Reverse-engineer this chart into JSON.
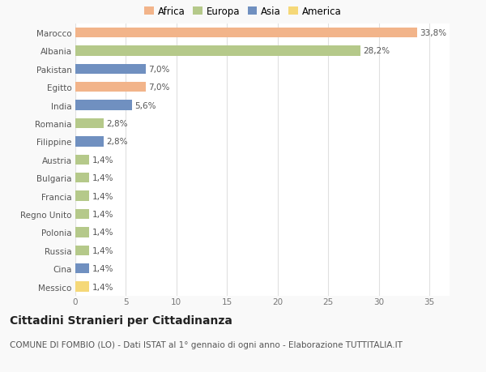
{
  "countries": [
    "Marocco",
    "Albania",
    "Pakistan",
    "Egitto",
    "India",
    "Romania",
    "Filippine",
    "Austria",
    "Bulgaria",
    "Francia",
    "Regno Unito",
    "Polonia",
    "Russia",
    "Cina",
    "Messico"
  ],
  "values": [
    33.8,
    28.2,
    7.0,
    7.0,
    5.6,
    2.8,
    2.8,
    1.4,
    1.4,
    1.4,
    1.4,
    1.4,
    1.4,
    1.4,
    1.4
  ],
  "labels": [
    "33,8%",
    "28,2%",
    "7,0%",
    "7,0%",
    "5,6%",
    "2,8%",
    "2,8%",
    "1,4%",
    "1,4%",
    "1,4%",
    "1,4%",
    "1,4%",
    "1,4%",
    "1,4%",
    "1,4%"
  ],
  "continents": [
    "Africa",
    "Europa",
    "Asia",
    "Africa",
    "Asia",
    "Europa",
    "Asia",
    "Europa",
    "Europa",
    "Europa",
    "Europa",
    "Europa",
    "Europa",
    "Asia",
    "America"
  ],
  "continent_colors": {
    "Africa": "#F2B48A",
    "Europa": "#B5C98A",
    "Asia": "#7090C0",
    "America": "#F5D878"
  },
  "legend_order": [
    "Africa",
    "Europa",
    "Asia",
    "America"
  ],
  "title": "Cittadini Stranieri per Cittadinanza",
  "subtitle": "COMUNE DI FOMBIO (LO) - Dati ISTAT al 1° gennaio di ogni anno - Elaborazione TUTTITALIA.IT",
  "xlim": [
    0,
    37
  ],
  "xticks": [
    0,
    5,
    10,
    15,
    20,
    25,
    30,
    35
  ],
  "background_color": "#f9f9f9",
  "plot_background": "#ffffff",
  "grid_color": "#e0e0e0",
  "bar_height": 0.55,
  "label_fontsize": 7.5,
  "tick_fontsize": 7.5,
  "title_fontsize": 10,
  "subtitle_fontsize": 7.5
}
